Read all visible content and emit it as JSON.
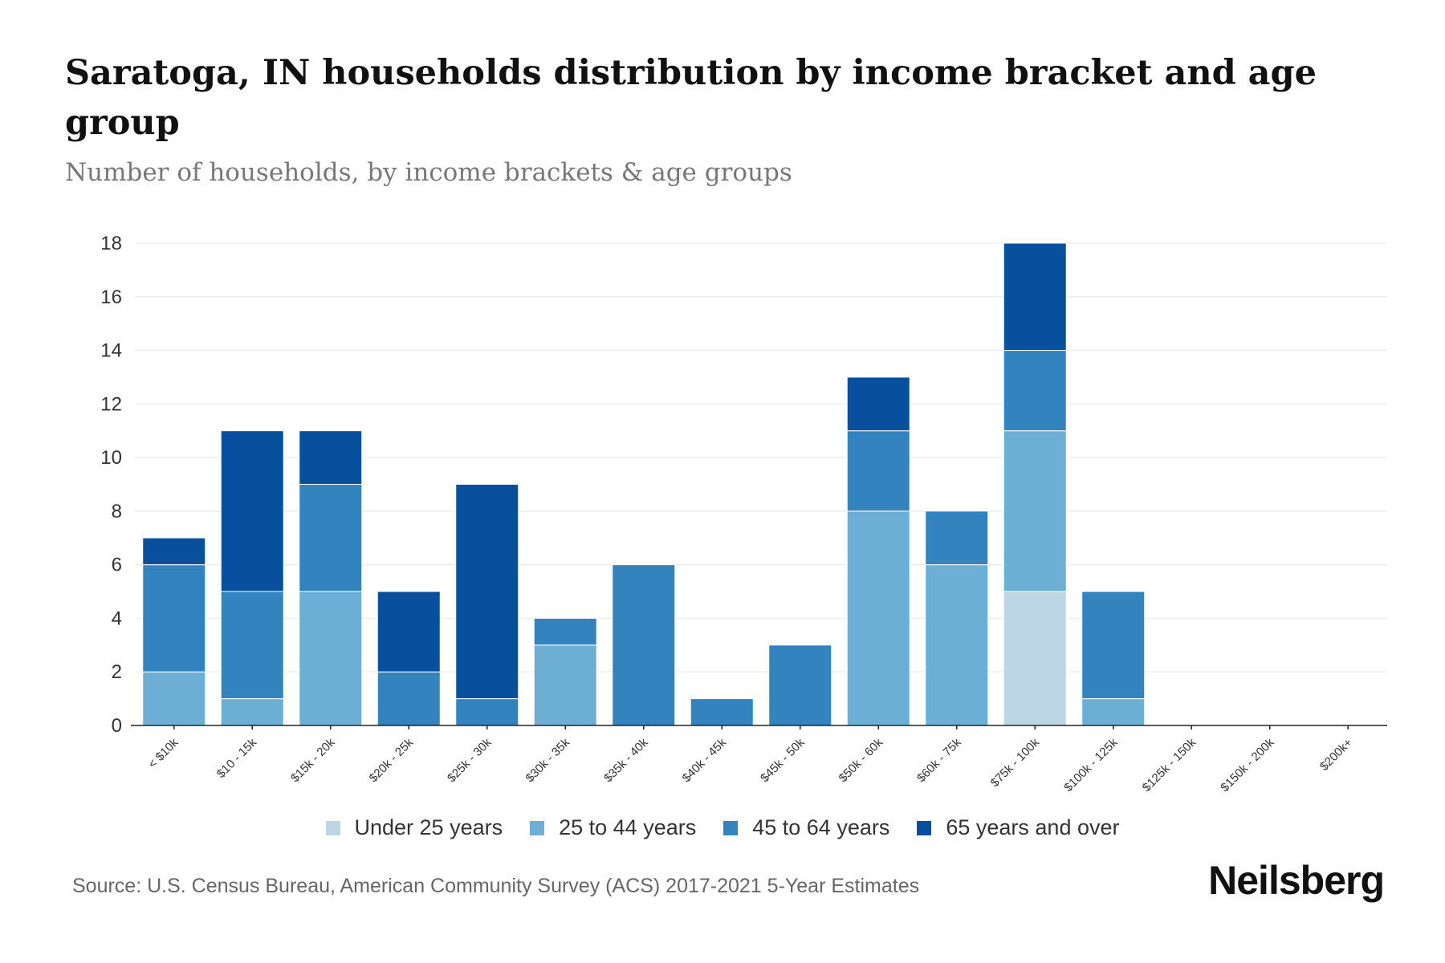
{
  "header": {
    "title": "Saratoga, IN households distribution by income bracket and age group",
    "subtitle": "Number of households, by income brackets & age groups"
  },
  "footer": {
    "source": "Source: U.S. Census Bureau, American Community Survey (ACS) 2017-2021 5-Year Estimates",
    "brand": "Neilsberg"
  },
  "chart_data": {
    "type": "bar",
    "stacked": true,
    "title": "Saratoga, IN households distribution by income bracket and age group",
    "subtitle": "Number of households, by income brackets & age groups",
    "xlabel": "",
    "ylabel": "",
    "ylim": [
      0,
      18
    ],
    "yticks": [
      0,
      2,
      4,
      6,
      8,
      10,
      12,
      14,
      16,
      18
    ],
    "grid": true,
    "legend_position": "bottom-center",
    "categories": [
      "< $10k",
      "$10 - 15k",
      "$15k - 20k",
      "$20k - 25k",
      "$25k - 30k",
      "$30k - 35k",
      "$35k - 40k",
      "$40k - 45k",
      "$45k - 50k",
      "$50k - 60k",
      "$60k - 75k",
      "$75k - 100k",
      "$100k - 125k",
      "$125k - 150k",
      "$150k - 200k",
      "$200k+"
    ],
    "series": [
      {
        "name": "Under 25 years",
        "color": "#bcd6e6",
        "values": [
          0,
          0,
          0,
          0,
          0,
          0,
          0,
          0,
          0,
          0,
          0,
          5,
          0,
          0,
          0,
          0
        ]
      },
      {
        "name": "25 to 44 years",
        "color": "#6daed5",
        "values": [
          2,
          1,
          5,
          0,
          0,
          3,
          0,
          0,
          0,
          8,
          6,
          6,
          1,
          0,
          0,
          0
        ]
      },
      {
        "name": "45 to 64 years",
        "color": "#3383be",
        "values": [
          4,
          4,
          4,
          2,
          1,
          1,
          6,
          1,
          3,
          3,
          2,
          3,
          4,
          0,
          0,
          0
        ]
      },
      {
        "name": "65 years and over",
        "color": "#08509d",
        "values": [
          1,
          6,
          2,
          3,
          8,
          0,
          0,
          0,
          0,
          2,
          0,
          4,
          0,
          0,
          0,
          0
        ]
      }
    ]
  }
}
